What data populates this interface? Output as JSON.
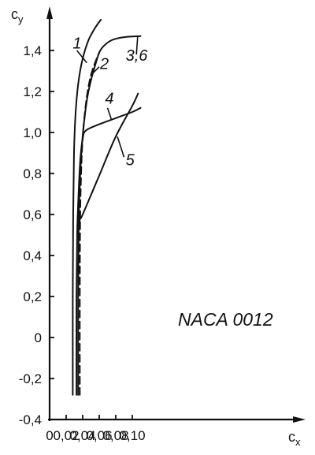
{
  "chart_data": {
    "type": "line",
    "title": "",
    "annotation": "NACA 0012",
    "xlabel": "c",
    "xlabel_sub": "x",
    "ylabel": "c",
    "ylabel_sub": "y",
    "xlim": [
      0,
      0.11
    ],
    "ylim": [
      -0.4,
      1.5
    ],
    "xticks": [
      0,
      0.02,
      0.04,
      0.06,
      0.08,
      0.1
    ],
    "xtick_labels": [
      "0",
      "0,02",
      "0,04",
      "0,06",
      "0,08",
      "0,10"
    ],
    "yticks": [
      -0.4,
      -0.2,
      0,
      0.2,
      0.4,
      0.6,
      0.8,
      1.0,
      1.2,
      1.4
    ],
    "ytick_labels": [
      "-0,4",
      "-0,2",
      "0",
      "0,2",
      "0,4",
      "0,6",
      "0,8",
      "1,0",
      "1,2",
      "1,4"
    ],
    "grid": false,
    "legend": "none",
    "series": [
      {
        "label": "1",
        "style": "solid",
        "x": [
          0.028,
          0.028,
          0.0285,
          0.0295,
          0.0315,
          0.035,
          0.04,
          0.047,
          0.055,
          0.062
        ],
        "y": [
          -0.28,
          0.2,
          0.6,
          0.9,
          1.1,
          1.25,
          1.36,
          1.45,
          1.51,
          1.55
        ]
      },
      {
        "label": "2",
        "style": "dashed",
        "x": [
          0.0365,
          0.0365,
          0.037,
          0.0385,
          0.0405,
          0.043,
          0.046,
          0.05,
          0.055,
          0.06
        ],
        "y": [
          -0.28,
          0.2,
          0.6,
          0.85,
          1.0,
          1.11,
          1.2,
          1.28,
          1.34,
          1.39
        ]
      },
      {
        "label": "3,6",
        "style": "solid",
        "x": [
          0.0345,
          0.0345,
          0.0352,
          0.037,
          0.0395,
          0.0425,
          0.046,
          0.051,
          0.056,
          0.06,
          0.065,
          0.075,
          0.09,
          0.11
        ],
        "y": [
          -0.28,
          0.2,
          0.55,
          0.8,
          0.96,
          1.08,
          1.18,
          1.27,
          1.34,
          1.39,
          1.42,
          1.45,
          1.465,
          1.47
        ]
      },
      {
        "label": "4",
        "style": "solid",
        "x": [
          0.0325,
          0.0325,
          0.0333,
          0.035,
          0.037,
          0.04,
          0.044,
          0.06,
          0.08,
          0.1,
          0.11
        ],
        "y": [
          -0.28,
          0.2,
          0.5,
          0.7,
          0.86,
          0.97,
          1.01,
          1.04,
          1.07,
          1.1,
          1.12
        ]
      },
      {
        "label": "5",
        "style": "solid",
        "x": [
          0.034,
          0.037,
          0.04,
          0.06,
          0.08,
          0.1,
          0.107
        ],
        "y": [
          0.53,
          0.58,
          0.6,
          0.79,
          0.98,
          1.13,
          1.19
        ]
      }
    ],
    "curve_labels": [
      {
        "text": "1",
        "x": 0.028,
        "y": 1.41,
        "lx1": 0.033,
        "ly1": 1.4,
        "lx2": 0.045,
        "ly2": 1.34
      },
      {
        "text": "2",
        "x": 0.061,
        "y": 1.31,
        "lx1": 0.06,
        "ly1": 1.32,
        "lx2": 0.05,
        "ly2": 1.28
      },
      {
        "text": "3,6",
        "x": 0.092,
        "y": 1.35,
        "lx1": 0.105,
        "ly1": 1.38,
        "lx2": 0.1065,
        "ly2": 1.47
      },
      {
        "text": "4",
        "x": 0.067,
        "y": 1.14,
        "lx1": 0.07,
        "ly1": 1.12,
        "lx2": 0.075,
        "ly2": 1.06
      },
      {
        "text": "5",
        "x": 0.092,
        "y": 0.84,
        "lx1": 0.09,
        "ly1": 0.88,
        "lx2": 0.082,
        "ly2": 0.98
      }
    ]
  }
}
